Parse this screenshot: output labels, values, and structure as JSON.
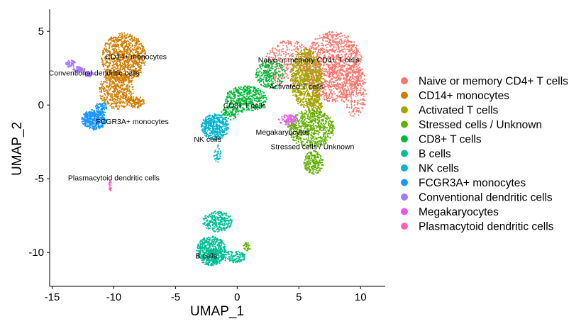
{
  "chart_data": {
    "type": "scatter",
    "xlabel": "UMAP_1",
    "ylabel": "UMAP_2",
    "xlim": [
      -15.2,
      12
    ],
    "ylim": [
      -12.3,
      6.5
    ],
    "xticks": [
      -15,
      -10,
      -5,
      0,
      5,
      10
    ],
    "yticks": [
      5,
      0,
      -5,
      -10
    ],
    "grid": false,
    "legend_position": "right",
    "series": [
      {
        "name": "Naive or memory CD4+ T cells",
        "color": "#F8766D",
        "label": "Naive or memory CD4+ T cells",
        "label_at": [
          5.8,
          2.9
        ],
        "blobs": [
          [
            7.8,
            2.6,
            2.4,
            2.4,
            1300
          ],
          [
            4.2,
            2.8,
            2.0,
            1.6,
            350
          ],
          [
            9.5,
            1.0,
            1.0,
            1.8,
            250
          ]
        ]
      },
      {
        "name": "CD14+ monocytes",
        "color": "#D07D00",
        "label": "CD14+ monocytes",
        "label_at": [
          -8.2,
          3.1
        ],
        "blobs": [
          [
            -9.2,
            3.2,
            1.8,
            1.7,
            900
          ],
          [
            -9.8,
            1.0,
            1.4,
            1.3,
            500
          ],
          [
            -8.2,
            0.2,
            0.7,
            0.4,
            120
          ]
        ]
      },
      {
        "name": "Activated T cells",
        "color": "#A3A500",
        "label": "Activated T cells",
        "label_at": [
          4.8,
          1.1
        ],
        "blobs": [
          [
            5.6,
            1.8,
            1.3,
            2.0,
            800
          ],
          [
            6.3,
            -0.1,
            0.6,
            0.8,
            150
          ]
        ]
      },
      {
        "name": "Stressed cells / Unknown",
        "color": "#60B000",
        "label": "Stressed cells / Unknown",
        "label_at": [
          6.1,
          -3.0
        ],
        "blobs": [
          [
            6.0,
            -1.6,
            1.9,
            1.3,
            650
          ],
          [
            6.2,
            -3.9,
            0.8,
            0.8,
            220
          ],
          [
            0.8,
            -9.6,
            0.3,
            0.3,
            30
          ]
        ]
      },
      {
        "name": "CD8+ T cells",
        "color": "#00B937",
        "label": "CD8+ T cells",
        "label_at": [
          0.6,
          -0.2
        ],
        "blobs": [
          [
            0.7,
            0.4,
            1.7,
            0.9,
            450
          ],
          [
            2.7,
            2.1,
            1.2,
            1.0,
            250
          ],
          [
            -0.6,
            -0.5,
            0.7,
            0.5,
            90
          ]
        ]
      },
      {
        "name": "B cells",
        "color": "#00BF94",
        "label": "B cells",
        "label_at": [
          -2.5,
          -10.4
        ],
        "blobs": [
          [
            -2.1,
            -9.9,
            1.2,
            1.0,
            600
          ],
          [
            -1.6,
            -7.9,
            1.2,
            0.7,
            280
          ],
          [
            -0.3,
            -10.3,
            1.0,
            0.4,
            130
          ]
        ]
      },
      {
        "name": "NK cells",
        "color": "#00B4CF",
        "label": "NK cells",
        "label_at": [
          -2.4,
          -2.5
        ],
        "blobs": [
          [
            -1.8,
            -1.5,
            1.1,
            0.9,
            450
          ],
          [
            -1.6,
            -3.3,
            0.3,
            0.6,
            40
          ]
        ]
      },
      {
        "name": "FCGR3A+ monocytes",
        "color": "#1A96FF",
        "label": "FCGR3A+ monocytes",
        "label_at": [
          -8.5,
          -1.3
        ],
        "blobs": [
          [
            -11.6,
            -1.0,
            1.0,
            0.7,
            400
          ],
          [
            -11.0,
            -0.2,
            0.5,
            0.4,
            80
          ]
        ]
      },
      {
        "name": "Conventional dendritic cells",
        "color": "#A579FF",
        "label": "Conventional dendritic cells",
        "label_at": [
          -11.6,
          2.0
        ],
        "blobs": [
          [
            -13.5,
            2.8,
            0.4,
            0.25,
            60
          ],
          [
            -12.8,
            2.4,
            0.5,
            0.22,
            60
          ],
          [
            -12.0,
            2.1,
            0.4,
            0.2,
            40
          ]
        ]
      },
      {
        "name": "Megakaryocytes",
        "color": "#E35AED",
        "label": "Megakaryocytes",
        "label_at": [
          3.7,
          -2.0
        ],
        "blobs": [
          [
            4.1,
            -1.0,
            0.8,
            0.35,
            90
          ]
        ]
      },
      {
        "name": "Plasmacytoid dendritic cells",
        "color": "#FF61BD",
        "label": "Plasmacytoid dendritic cells",
        "label_at": [
          -10.0,
          -5.1
        ],
        "blobs": [
          [
            -10.3,
            -5.5,
            0.1,
            0.35,
            25
          ]
        ]
      }
    ]
  }
}
